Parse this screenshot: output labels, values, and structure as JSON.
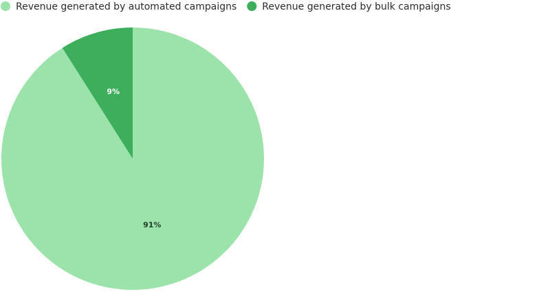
{
  "chart_data": {
    "type": "pie",
    "categories": [
      "Revenue generated by automated campaigns",
      "Revenue generated by bulk campaigns"
    ],
    "values": [
      91,
      9
    ],
    "value_labels": [
      "91%",
      "9%"
    ],
    "colors": [
      "#9be3aa",
      "#3dae5c"
    ],
    "legend": "top-left"
  }
}
